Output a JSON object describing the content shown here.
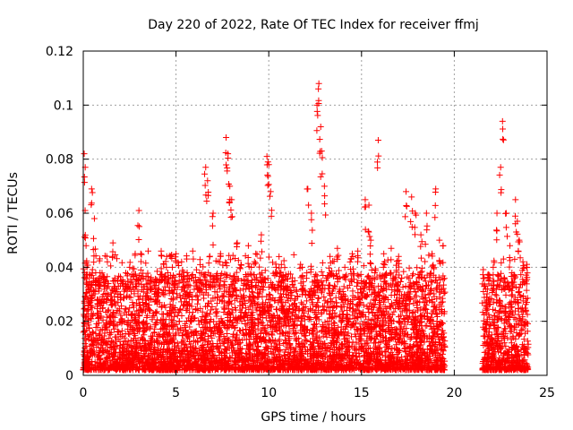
{
  "chart_data": {
    "type": "scatter",
    "title": "Day 220 of 2022, Rate Of TEC Index for receiver ffmj",
    "xlabel": "GPS time / hours",
    "ylabel": "ROTI / TECUs",
    "xlim": [
      0,
      25
    ],
    "ylim": [
      0,
      0.12
    ],
    "xticks": [
      "0",
      "5",
      "10",
      "15",
      "20",
      "25"
    ],
    "yticks": [
      "0",
      "0.02",
      "0.04",
      "0.06",
      "0.08",
      "0.1",
      "0.12"
    ],
    "grid": true,
    "marker": "+",
    "color": "#ff0000",
    "data_gap_hours": [
      19.5,
      21.5
    ],
    "series": [
      {
        "x": [
          0.05,
          0.1,
          0.15,
          0.2,
          0.3,
          0.45,
          0.6,
          0.8,
          1.1,
          1.3,
          1.6,
          1.7,
          2.0,
          2.3,
          2.5,
          2.8,
          3.0,
          3.1,
          3.5,
          3.9,
          4.2,
          4.5,
          4.8,
          5.0,
          5.3,
          5.6,
          5.9,
          6.3,
          6.6,
          6.7,
          7.0,
          7.4,
          7.7,
          7.8,
          7.9,
          8.0,
          8.3,
          8.5,
          8.9,
          9.3,
          9.6,
          9.9,
          10.0,
          10.1,
          10.4,
          10.7,
          11.0,
          11.4,
          11.8,
          12.1,
          12.3,
          12.6,
          12.7,
          12.8,
          12.85,
          13.0,
          13.3,
          13.7,
          14.1,
          14.5,
          14.8,
          15.2,
          15.4,
          15.5,
          15.9,
          16.2,
          16.6,
          17.0,
          17.4,
          17.7,
          17.9,
          18.2,
          18.5,
          18.8,
          19.0,
          19.2,
          19.4,
          21.7,
          21.9,
          22.1,
          22.3,
          22.5,
          22.6,
          22.8,
          23.0,
          23.3,
          23.4,
          23.5,
          23.7,
          23.9
        ],
        "y": [
          0.082,
          0.061,
          0.048,
          0.04,
          0.032,
          0.069,
          0.058,
          0.035,
          0.03,
          0.042,
          0.049,
          0.036,
          0.03,
          0.033,
          0.04,
          0.045,
          0.061,
          0.045,
          0.046,
          0.03,
          0.046,
          0.044,
          0.04,
          0.045,
          0.042,
          0.038,
          0.046,
          0.041,
          0.077,
          0.072,
          0.06,
          0.045,
          0.088,
          0.082,
          0.07,
          0.065,
          0.049,
          0.041,
          0.048,
          0.045,
          0.052,
          0.081,
          0.078,
          0.068,
          0.04,
          0.035,
          0.033,
          0.035,
          0.04,
          0.069,
          0.06,
          0.1,
          0.108,
          0.092,
          0.083,
          0.07,
          0.044,
          0.047,
          0.04,
          0.045,
          0.046,
          0.065,
          0.063,
          0.05,
          0.087,
          0.045,
          0.047,
          0.044,
          0.068,
          0.066,
          0.06,
          0.052,
          0.06,
          0.045,
          0.069,
          0.05,
          0.048,
          0.032,
          0.037,
          0.04,
          0.06,
          0.077,
          0.094,
          0.06,
          0.048,
          0.065,
          0.057,
          0.05,
          0.042,
          0.04
        ]
      }
    ]
  }
}
